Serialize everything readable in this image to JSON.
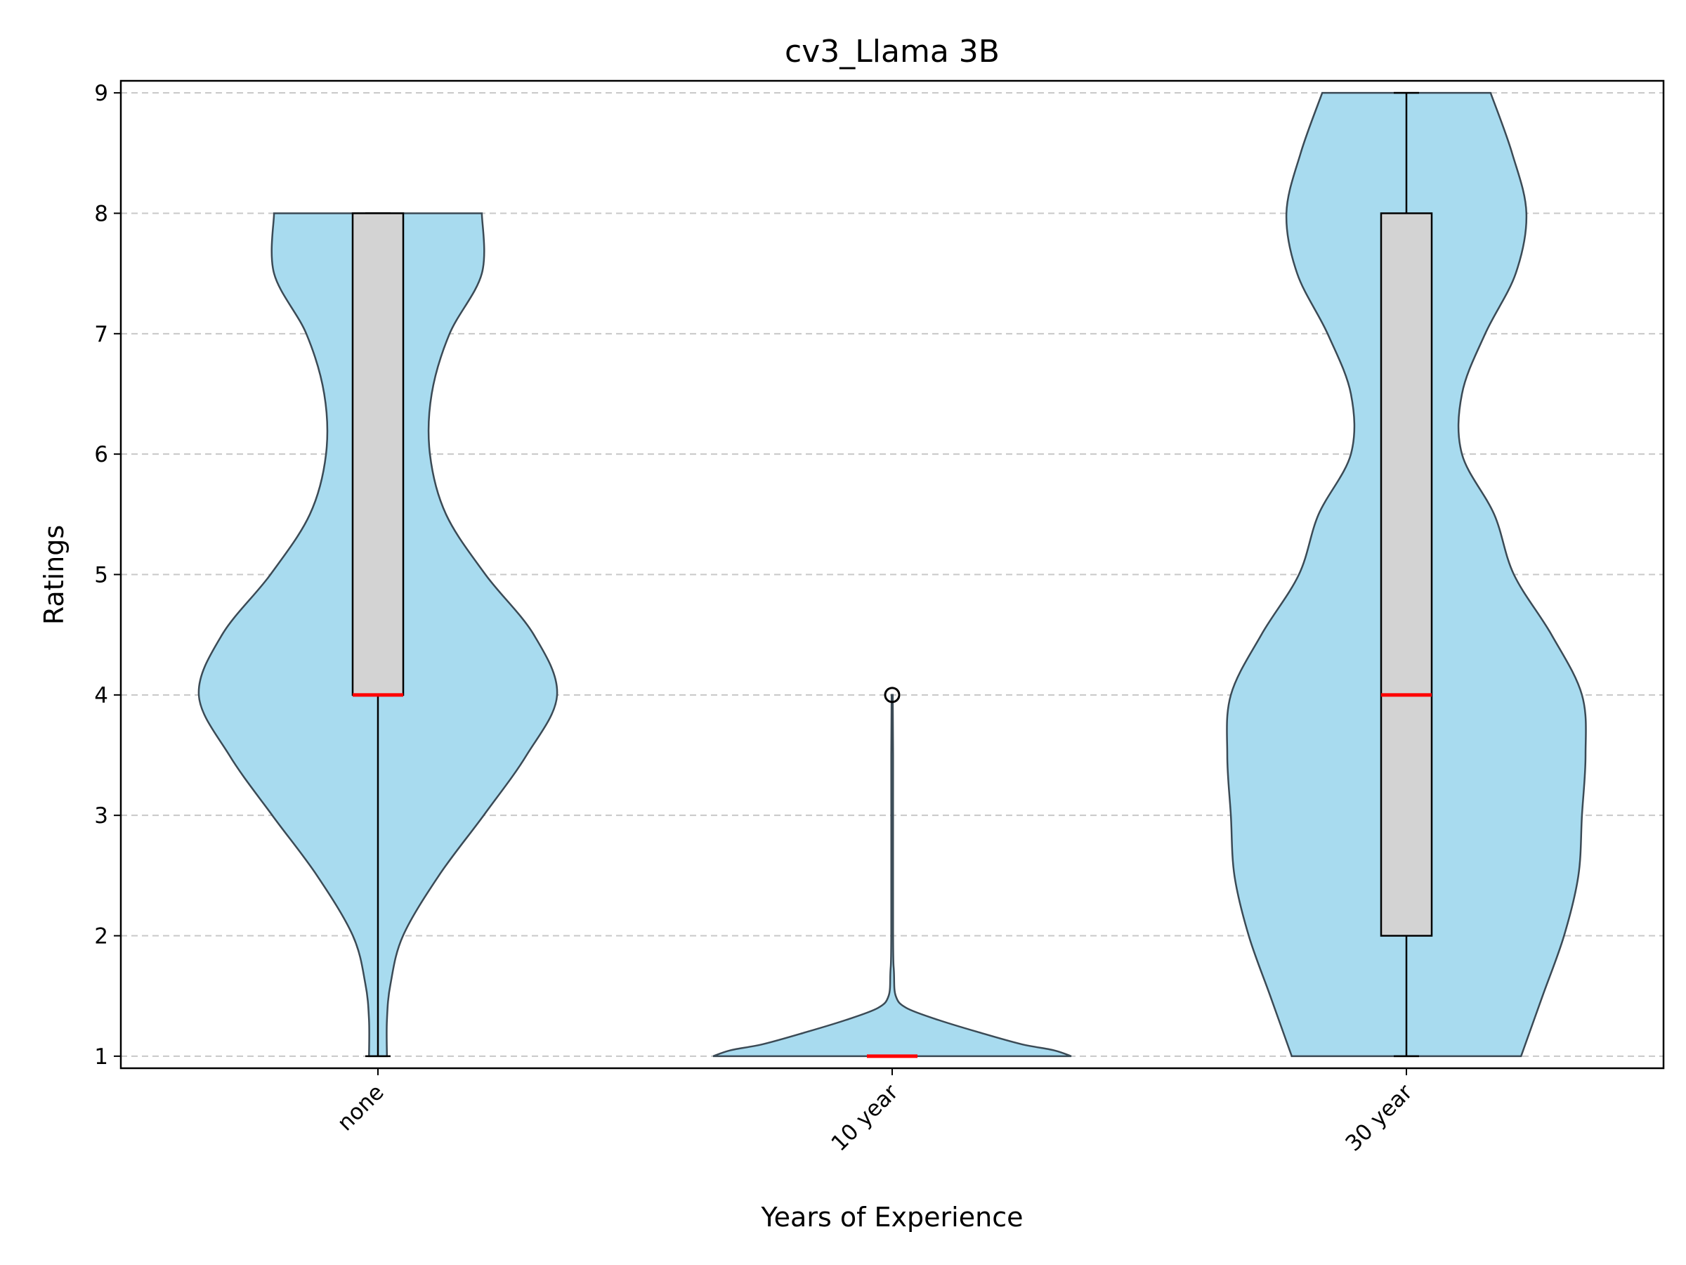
{
  "chart_data": {
    "type": "violin",
    "title": "cv3_Llama 3B",
    "xlabel": "Years of Experience",
    "ylabel": "Ratings",
    "categories": [
      "none",
      "10 year",
      "30 year"
    ],
    "ylim": [
      0.9,
      9.1
    ],
    "yticks": [
      1,
      2,
      3,
      4,
      5,
      6,
      7,
      8,
      9
    ],
    "grid": "y-dashed",
    "colors": {
      "violin_fill": "#a8dbef",
      "violin_edge": "#3b4a55",
      "box_fill": "#d3d3d3",
      "box_edge": "#000000",
      "median": "#ff0000",
      "grid": "#c8c8c8"
    },
    "series": [
      {
        "category": "none",
        "box": {
          "whisker_low": 1,
          "q1": 4,
          "median": 4,
          "q3": 8,
          "whisker_high": 8
        },
        "outliers": [],
        "density_range": [
          1,
          8
        ],
        "density": [
          [
            1,
            0.05
          ],
          [
            1.3,
            0.05
          ],
          [
            1.6,
            0.07
          ],
          [
            2,
            0.14
          ],
          [
            2.5,
            0.34
          ],
          [
            3,
            0.59
          ],
          [
            3.5,
            0.83
          ],
          [
            4,
            1.0
          ],
          [
            4.5,
            0.87
          ],
          [
            5,
            0.6
          ],
          [
            5.5,
            0.38
          ],
          [
            6,
            0.29
          ],
          [
            6.5,
            0.3
          ],
          [
            7,
            0.4
          ],
          [
            7.5,
            0.58
          ],
          [
            8,
            0.58
          ]
        ]
      },
      {
        "category": "10 year",
        "box": {
          "whisker_low": 1,
          "q1": 1,
          "median": 1,
          "q3": 1,
          "whisker_high": 1
        },
        "outliers": [
          4
        ],
        "density_range": [
          1,
          4
        ],
        "density": [
          [
            1,
            1.0
          ],
          [
            1.05,
            0.9
          ],
          [
            1.1,
            0.72
          ],
          [
            1.2,
            0.48
          ],
          [
            1.3,
            0.26
          ],
          [
            1.4,
            0.08
          ],
          [
            1.5,
            0.02
          ],
          [
            1.7,
            0.01
          ],
          [
            2,
            0.005
          ],
          [
            3.5,
            0.005
          ],
          [
            4,
            0.003
          ]
        ]
      },
      {
        "category": "30 year",
        "box": {
          "whisker_low": 1,
          "q1": 2,
          "median": 4,
          "q3": 8,
          "whisker_high": 9
        },
        "outliers": [],
        "density_range": [
          1,
          9
        ],
        "density": [
          [
            1,
            0.64
          ],
          [
            1.5,
            0.76
          ],
          [
            2,
            0.88
          ],
          [
            2.5,
            0.96
          ],
          [
            3,
            0.98
          ],
          [
            3.5,
            1.0
          ],
          [
            4,
            0.98
          ],
          [
            4.5,
            0.81
          ],
          [
            5,
            0.6
          ],
          [
            5.5,
            0.49
          ],
          [
            6,
            0.31
          ],
          [
            6.5,
            0.31
          ],
          [
            7,
            0.44
          ],
          [
            7.5,
            0.61
          ],
          [
            8,
            0.67
          ],
          [
            8.5,
            0.59
          ],
          [
            9,
            0.47
          ]
        ]
      }
    ]
  }
}
